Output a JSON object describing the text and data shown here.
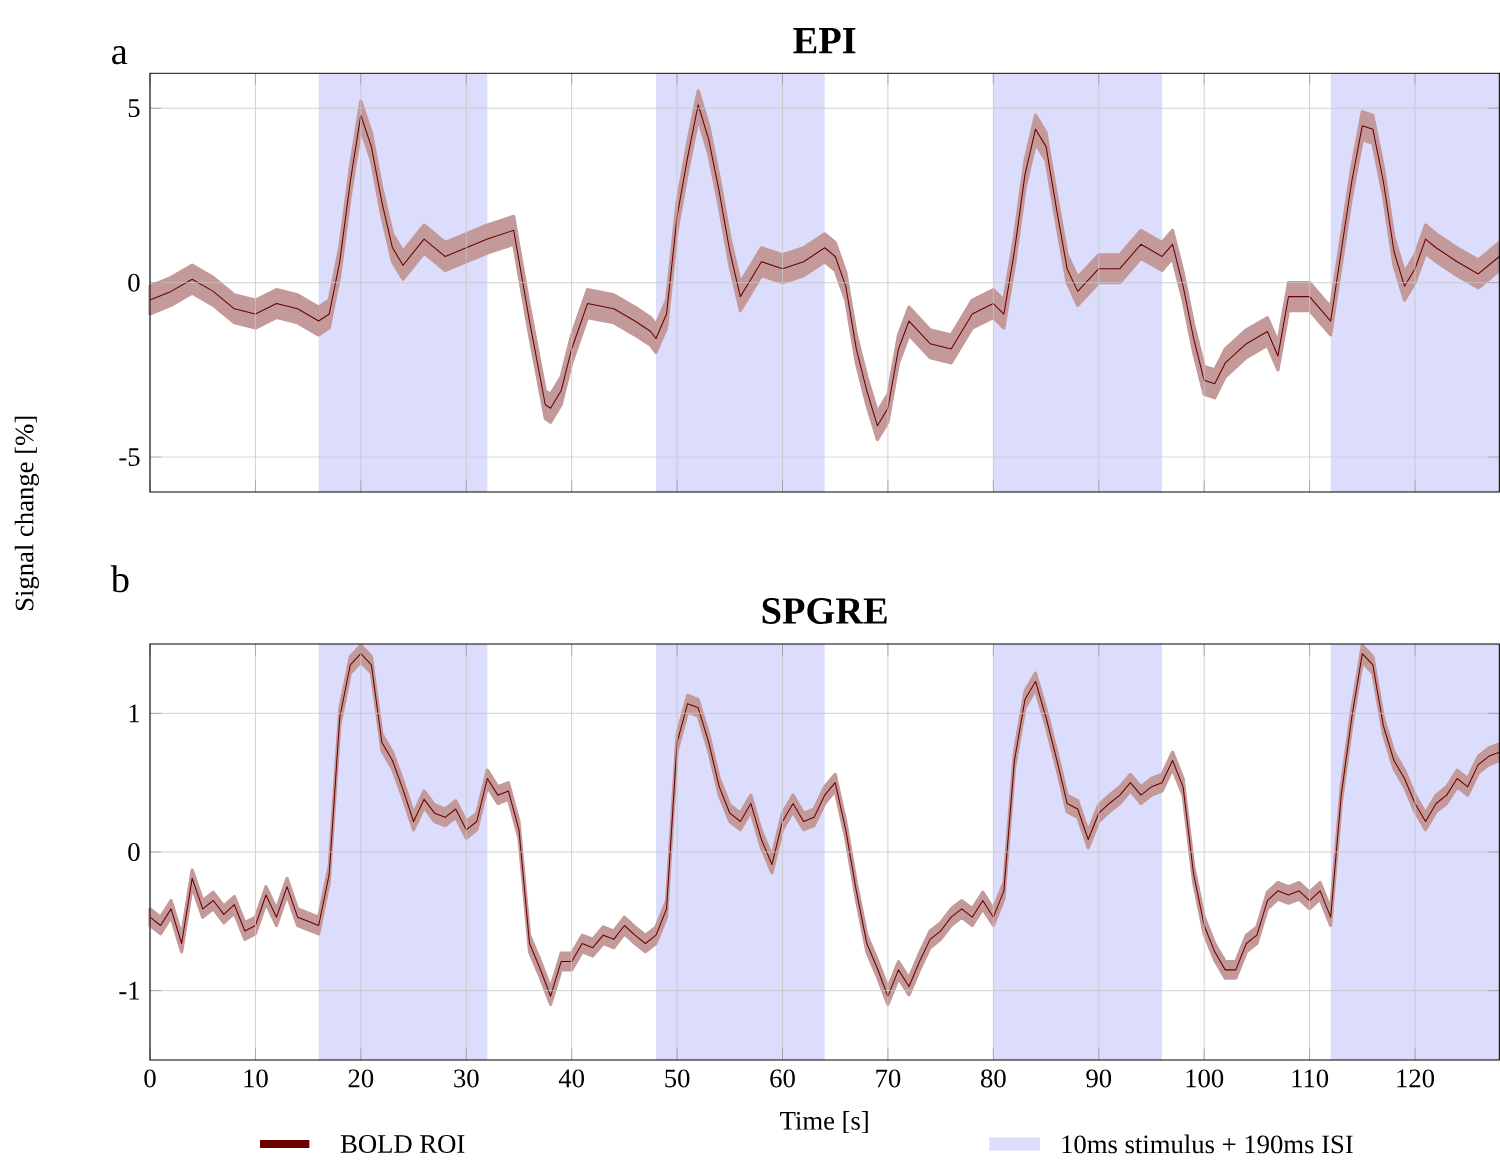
{
  "chart_data": [
    {
      "type": "line",
      "title": "EPI",
      "annotations": [
        "a"
      ],
      "ylabel": "Signal change [%]",
      "xlim": [
        0,
        128
      ],
      "xticks": [
        0,
        10,
        20,
        30,
        40,
        50,
        60,
        70,
        80,
        90,
        100,
        110,
        120
      ],
      "ylim": [
        -6,
        6
      ],
      "yticks": [
        -5,
        0,
        5
      ],
      "grid": true,
      "tick_labels": "y",
      "bands": [
        {
          "axis": "x",
          "from": 16,
          "to": 32,
          "color": "#dcdcfc"
        },
        {
          "axis": "x",
          "from": 48,
          "to": 64,
          "color": "#dcdcfc"
        },
        {
          "axis": "x",
          "from": 80,
          "to": 96,
          "color": "#dcdcfc"
        },
        {
          "axis": "x",
          "from": 112,
          "to": 128,
          "color": "#dcdcfc"
        }
      ],
      "series": [
        {
          "color": "#6b0000",
          "x": [
            0,
            2,
            4,
            6,
            8,
            10,
            12,
            14,
            16,
            17,
            18,
            19,
            20,
            21,
            22,
            23,
            24,
            26,
            28,
            30,
            32,
            34.5,
            36,
            37.5,
            38,
            39,
            40,
            41.5,
            44,
            46,
            47.5,
            48,
            49,
            50,
            51,
            52,
            53,
            54,
            55,
            56,
            57,
            58,
            60,
            62,
            64,
            65,
            66,
            67,
            68,
            69,
            70,
            71,
            72,
            74,
            76,
            78,
            80,
            81,
            82,
            83,
            84,
            85,
            86,
            87,
            88,
            90,
            92,
            94,
            96,
            97,
            98,
            99,
            100,
            101,
            102,
            104,
            106,
            107,
            108,
            110,
            112,
            113,
            114,
            115,
            116,
            117,
            118,
            119,
            120,
            121,
            122,
            124,
            126,
            128
          ],
          "values": [
            -0.5,
            -0.25,
            0.1,
            -0.25,
            -0.75,
            -0.9,
            -0.6,
            -0.75,
            -1.1,
            -0.9,
            0.6,
            2.9,
            4.8,
            3.9,
            2.3,
            1.0,
            0.5,
            1.25,
            0.75,
            1.0,
            1.25,
            1.5,
            -1.1,
            -3.5,
            -3.6,
            -3.1,
            -1.9,
            -0.6,
            -0.75,
            -1.1,
            -1.4,
            -1.6,
            -0.9,
            1.9,
            3.6,
            5.1,
            4.1,
            2.6,
            0.9,
            -0.4,
            0.1,
            0.6,
            0.4,
            0.6,
            1.0,
            0.75,
            -0.1,
            -1.9,
            -3.1,
            -4.1,
            -3.6,
            -1.9,
            -1.1,
            -1.75,
            -1.9,
            -0.9,
            -0.6,
            -0.9,
            0.9,
            3.1,
            4.4,
            3.9,
            2.1,
            0.4,
            -0.25,
            0.4,
            0.4,
            1.1,
            0.75,
            1.1,
            -0.1,
            -1.6,
            -2.8,
            -2.9,
            -2.3,
            -1.75,
            -1.4,
            -2.1,
            -0.4,
            -0.4,
            -1.1,
            0.9,
            2.9,
            4.5,
            4.4,
            2.9,
            0.9,
            -0.1,
            0.4,
            1.25,
            1.0,
            0.6,
            0.25,
            0.75
          ],
          "lower": [
            -0.9,
            -0.65,
            -0.3,
            -0.65,
            -1.15,
            -1.3,
            -1.0,
            -1.15,
            -1.5,
            -1.3,
            0.2,
            2.5,
            4.4,
            3.5,
            1.9,
            0.6,
            0.1,
            0.85,
            0.35,
            0.6,
            0.85,
            1.1,
            -1.5,
            -3.9,
            -4.0,
            -3.5,
            -2.3,
            -1.0,
            -1.15,
            -1.5,
            -1.8,
            -2.0,
            -1.3,
            1.5,
            3.2,
            4.7,
            3.7,
            2.2,
            0.5,
            -0.8,
            -0.3,
            0.2,
            0.0,
            0.2,
            0.6,
            0.35,
            -0.5,
            -2.3,
            -3.5,
            -4.5,
            -4.0,
            -2.3,
            -1.5,
            -2.15,
            -2.3,
            -1.3,
            -1.0,
            -1.3,
            0.5,
            2.7,
            4.0,
            3.5,
            1.7,
            0.0,
            -0.65,
            0.0,
            0.0,
            0.7,
            0.35,
            0.7,
            -0.5,
            -2.0,
            -3.2,
            -3.3,
            -2.7,
            -2.15,
            -1.8,
            -2.5,
            -0.8,
            -0.8,
            -1.5,
            0.5,
            2.5,
            4.1,
            4.0,
            2.5,
            0.5,
            -0.5,
            0.0,
            0.85,
            0.6,
            0.2,
            -0.15,
            0.35
          ],
          "upper": [
            -0.1,
            0.15,
            0.5,
            0.15,
            -0.35,
            -0.5,
            -0.2,
            -0.35,
            -0.7,
            -0.5,
            1.0,
            3.3,
            5.2,
            4.3,
            2.7,
            1.4,
            0.9,
            1.65,
            1.15,
            1.4,
            1.65,
            1.9,
            -0.7,
            -3.1,
            -3.2,
            -2.7,
            -1.5,
            -0.2,
            -0.35,
            -0.7,
            -1.0,
            -1.2,
            -0.5,
            2.3,
            4.0,
            5.5,
            4.5,
            3.0,
            1.3,
            0.0,
            0.5,
            1.0,
            0.8,
            1.0,
            1.4,
            1.15,
            0.3,
            -1.5,
            -2.7,
            -3.7,
            -3.2,
            -1.5,
            -0.7,
            -1.35,
            -1.5,
            -0.5,
            -0.2,
            -0.5,
            1.3,
            3.5,
            4.8,
            4.3,
            2.5,
            0.8,
            0.15,
            0.8,
            0.8,
            1.5,
            1.15,
            1.5,
            0.3,
            -1.2,
            -2.4,
            -2.5,
            -1.9,
            -1.35,
            -1.0,
            -1.7,
            0.0,
            0.0,
            -0.7,
            1.3,
            3.3,
            4.9,
            4.8,
            3.3,
            1.3,
            0.3,
            0.8,
            1.65,
            1.4,
            1.0,
            0.65,
            1.15
          ]
        }
      ]
    },
    {
      "type": "line",
      "title": "SPGRE",
      "annotations": [
        "b"
      ],
      "xlabel": "Time [s]",
      "xlim": [
        0,
        128
      ],
      "xticks": [
        0,
        10,
        20,
        30,
        40,
        50,
        60,
        70,
        80,
        90,
        100,
        110,
        120
      ],
      "ylim": [
        -1.5,
        1.5
      ],
      "yticks": [
        -1,
        0,
        1
      ],
      "grid": true,
      "legend": "bottom",
      "bands": [
        {
          "axis": "x",
          "from": 16,
          "to": 32,
          "color": "#dcdcfc",
          "label": "10ms stimulus + 190ms ISI"
        },
        {
          "axis": "x",
          "from": 48,
          "to": 64,
          "color": "#dcdcfc"
        },
        {
          "axis": "x",
          "from": 80,
          "to": 96,
          "color": "#dcdcfc"
        },
        {
          "axis": "x",
          "from": 112,
          "to": 128,
          "color": "#dcdcfc"
        }
      ],
      "series": [
        {
          "name": "BOLD ROI",
          "color": "#6b0000",
          "x": [
            0,
            1,
            2,
            3,
            4,
            5,
            6,
            7,
            8,
            9,
            10,
            11,
            12,
            13,
            14,
            15,
            16,
            17,
            18,
            19,
            20,
            21,
            22,
            23,
            24,
            25,
            26,
            27,
            28,
            29,
            30,
            31,
            32,
            33,
            34,
            35,
            36,
            37,
            38,
            39,
            40,
            41,
            42,
            43,
            44,
            45,
            46,
            47,
            48,
            49,
            50,
            51,
            52,
            53,
            54,
            55,
            56,
            57,
            58,
            59,
            60,
            61,
            62,
            63,
            64,
            65,
            66,
            67,
            68,
            69,
            70,
            71,
            72,
            73,
            74,
            75,
            76,
            77,
            78,
            79,
            80,
            81,
            82,
            83,
            84,
            85,
            86,
            87,
            88,
            89,
            90,
            91,
            92,
            93,
            94,
            95,
            96,
            97,
            98,
            99,
            100,
            101,
            102,
            103,
            104,
            105,
            106,
            107,
            108,
            109,
            110,
            111,
            112,
            113,
            114,
            115,
            116,
            117,
            118,
            119,
            120,
            121,
            122,
            123,
            124,
            125,
            126,
            127,
            128
          ],
          "values": [
            -0.47,
            -0.53,
            -0.41,
            -0.66,
            -0.19,
            -0.41,
            -0.35,
            -0.45,
            -0.38,
            -0.57,
            -0.53,
            -0.31,
            -0.47,
            -0.25,
            -0.47,
            -0.5,
            -0.53,
            -0.16,
            0.97,
            1.35,
            1.43,
            1.35,
            0.79,
            0.66,
            0.45,
            0.22,
            0.38,
            0.28,
            0.25,
            0.31,
            0.16,
            0.22,
            0.53,
            0.41,
            0.44,
            0.16,
            -0.66,
            -0.84,
            -1.04,
            -0.79,
            -0.79,
            -0.66,
            -0.69,
            -0.6,
            -0.63,
            -0.53,
            -0.6,
            -0.66,
            -0.6,
            -0.41,
            0.79,
            1.07,
            1.04,
            0.79,
            0.47,
            0.28,
            0.22,
            0.35,
            0.09,
            -0.09,
            0.22,
            0.35,
            0.22,
            0.25,
            0.41,
            0.5,
            0.16,
            -0.28,
            -0.66,
            -0.84,
            -1.04,
            -0.85,
            -0.97,
            -0.79,
            -0.63,
            -0.57,
            -0.47,
            -0.41,
            -0.47,
            -0.35,
            -0.47,
            -0.28,
            0.66,
            1.1,
            1.23,
            0.97,
            0.67,
            0.35,
            0.31,
            0.09,
            0.28,
            0.35,
            0.41,
            0.5,
            0.41,
            0.47,
            0.5,
            0.66,
            0.47,
            -0.16,
            -0.53,
            -0.72,
            -0.85,
            -0.85,
            -0.66,
            -0.6,
            -0.35,
            -0.28,
            -0.31,
            -0.28,
            -0.35,
            -0.28,
            -0.47,
            0.41,
            0.97,
            1.43,
            1.35,
            0.91,
            0.66,
            0.53,
            0.35,
            0.22,
            0.35,
            0.41,
            0.53,
            0.47,
            0.63,
            0.69,
            0.72
          ],
          "lower": [
            -0.53,
            -0.59,
            -0.47,
            -0.72,
            -0.25,
            -0.47,
            -0.41,
            -0.51,
            -0.44,
            -0.63,
            -0.59,
            -0.37,
            -0.53,
            -0.31,
            -0.53,
            -0.56,
            -0.59,
            -0.22,
            0.91,
            1.29,
            1.37,
            1.29,
            0.73,
            0.6,
            0.39,
            0.16,
            0.32,
            0.22,
            0.19,
            0.25,
            0.1,
            0.16,
            0.47,
            0.35,
            0.38,
            0.1,
            -0.72,
            -0.9,
            -1.1,
            -0.85,
            -0.85,
            -0.72,
            -0.75,
            -0.66,
            -0.69,
            -0.59,
            -0.66,
            -0.72,
            -0.66,
            -0.47,
            0.73,
            1.01,
            0.98,
            0.73,
            0.41,
            0.22,
            0.16,
            0.29,
            0.03,
            -0.15,
            0.16,
            0.29,
            0.16,
            0.19,
            0.35,
            0.44,
            0.1,
            -0.34,
            -0.72,
            -0.9,
            -1.1,
            -0.91,
            -1.03,
            -0.85,
            -0.69,
            -0.63,
            -0.53,
            -0.47,
            -0.53,
            -0.41,
            -0.53,
            -0.34,
            0.6,
            1.04,
            1.17,
            0.91,
            0.61,
            0.29,
            0.25,
            0.03,
            0.22,
            0.29,
            0.35,
            0.44,
            0.35,
            0.41,
            0.44,
            0.6,
            0.41,
            -0.22,
            -0.59,
            -0.78,
            -0.91,
            -0.91,
            -0.72,
            -0.66,
            -0.41,
            -0.34,
            -0.37,
            -0.34,
            -0.41,
            -0.34,
            -0.53,
            0.35,
            0.91,
            1.37,
            1.29,
            0.85,
            0.6,
            0.47,
            0.29,
            0.16,
            0.29,
            0.35,
            0.47,
            0.41,
            0.57,
            0.63,
            0.66
          ],
          "upper": [
            -0.41,
            -0.47,
            -0.35,
            -0.6,
            -0.13,
            -0.35,
            -0.29,
            -0.39,
            -0.32,
            -0.51,
            -0.47,
            -0.25,
            -0.41,
            -0.19,
            -0.41,
            -0.44,
            -0.47,
            -0.1,
            1.03,
            1.41,
            1.49,
            1.41,
            0.85,
            0.72,
            0.51,
            0.28,
            0.44,
            0.34,
            0.31,
            0.37,
            0.22,
            0.28,
            0.59,
            0.47,
            0.5,
            0.22,
            -0.6,
            -0.78,
            -0.98,
            -0.73,
            -0.73,
            -0.6,
            -0.63,
            -0.54,
            -0.57,
            -0.47,
            -0.54,
            -0.6,
            -0.54,
            -0.35,
            0.85,
            1.13,
            1.1,
            0.85,
            0.53,
            0.34,
            0.28,
            0.41,
            0.15,
            -0.03,
            0.28,
            0.41,
            0.28,
            0.31,
            0.47,
            0.56,
            0.22,
            -0.22,
            -0.6,
            -0.78,
            -0.98,
            -0.79,
            -0.91,
            -0.73,
            -0.57,
            -0.51,
            -0.41,
            -0.35,
            -0.41,
            -0.29,
            -0.41,
            -0.22,
            0.72,
            1.16,
            1.29,
            1.03,
            0.73,
            0.41,
            0.37,
            0.15,
            0.34,
            0.41,
            0.47,
            0.56,
            0.47,
            0.53,
            0.56,
            0.72,
            0.53,
            -0.1,
            -0.47,
            -0.66,
            -0.79,
            -0.79,
            -0.6,
            -0.54,
            -0.29,
            -0.22,
            -0.25,
            -0.22,
            -0.29,
            -0.22,
            -0.41,
            0.47,
            1.03,
            1.49,
            1.41,
            0.97,
            0.72,
            0.59,
            0.41,
            0.28,
            0.41,
            0.47,
            0.59,
            0.53,
            0.69,
            0.75,
            0.78
          ]
        }
      ]
    }
  ]
}
